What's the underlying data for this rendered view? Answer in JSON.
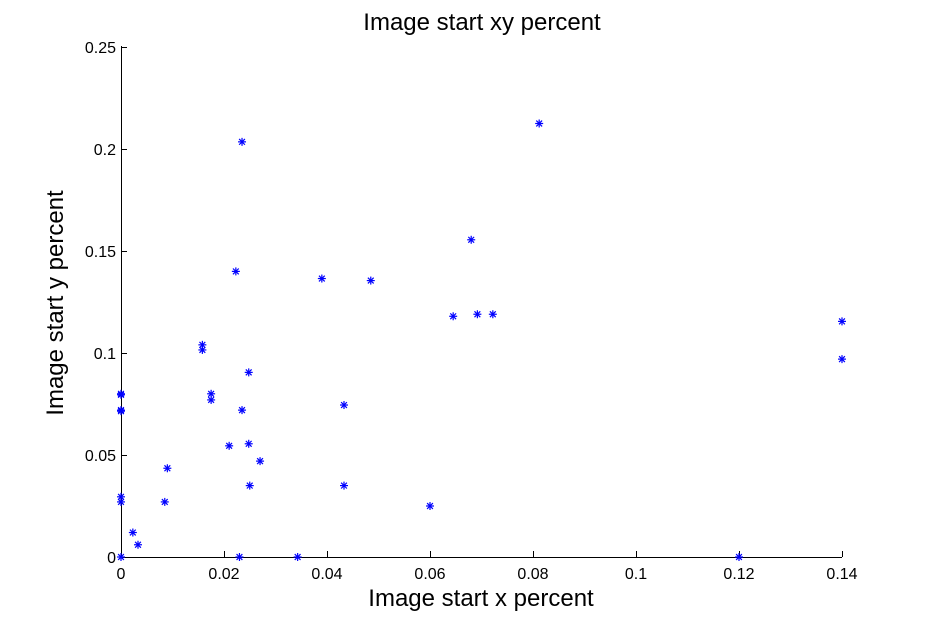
{
  "chart_data": {
    "type": "scatter",
    "title": "Image start xy percent",
    "xlabel": "Image start x percent",
    "ylabel": "Image start y percent",
    "xlim": [
      0,
      0.14
    ],
    "ylim": [
      0,
      0.25
    ],
    "xticks": [
      "0",
      "0.02",
      "0.04",
      "0.06",
      "0.08",
      "0.1",
      "0.12",
      "0.14"
    ],
    "yticks": [
      "0",
      "0.05",
      "0.1",
      "0.15",
      "0.2",
      "0.25"
    ],
    "grid": false,
    "marker": "*",
    "marker_color": "#0000ff",
    "series": [
      {
        "points": [
          [
            0.0,
            0.08
          ],
          [
            0.0,
            0.0795
          ],
          [
            0.0,
            0.072
          ],
          [
            0.0,
            0.0715
          ],
          [
            0.0,
            0.0295
          ],
          [
            0.0,
            0.027
          ],
          [
            0.0,
            0.0
          ],
          [
            0.0023,
            0.012
          ],
          [
            0.0033,
            0.006
          ],
          [
            0.0085,
            0.027
          ],
          [
            0.009,
            0.0435
          ],
          [
            0.0158,
            0.104
          ],
          [
            0.0158,
            0.1015
          ],
          [
            0.0175,
            0.08
          ],
          [
            0.0175,
            0.077
          ],
          [
            0.021,
            0.0545
          ],
          [
            0.0223,
            0.14
          ],
          [
            0.0235,
            0.2035
          ],
          [
            0.0235,
            0.072
          ],
          [
            0.023,
            0.0
          ],
          [
            0.0248,
            0.0905
          ],
          [
            0.0248,
            0.0555
          ],
          [
            0.025,
            0.035
          ],
          [
            0.027,
            0.047
          ],
          [
            0.0343,
            0.0
          ],
          [
            0.039,
            0.1365
          ],
          [
            0.0433,
            0.0745
          ],
          [
            0.0433,
            0.035
          ],
          [
            0.0485,
            0.1355
          ],
          [
            0.06,
            0.025
          ],
          [
            0.0645,
            0.118
          ],
          [
            0.068,
            0.1555
          ],
          [
            0.0692,
            0.119
          ],
          [
            0.0722,
            0.119
          ],
          [
            0.0812,
            0.2125
          ],
          [
            0.12,
            0.0
          ],
          [
            0.14,
            0.1155
          ],
          [
            0.14,
            0.097
          ]
        ]
      }
    ]
  }
}
